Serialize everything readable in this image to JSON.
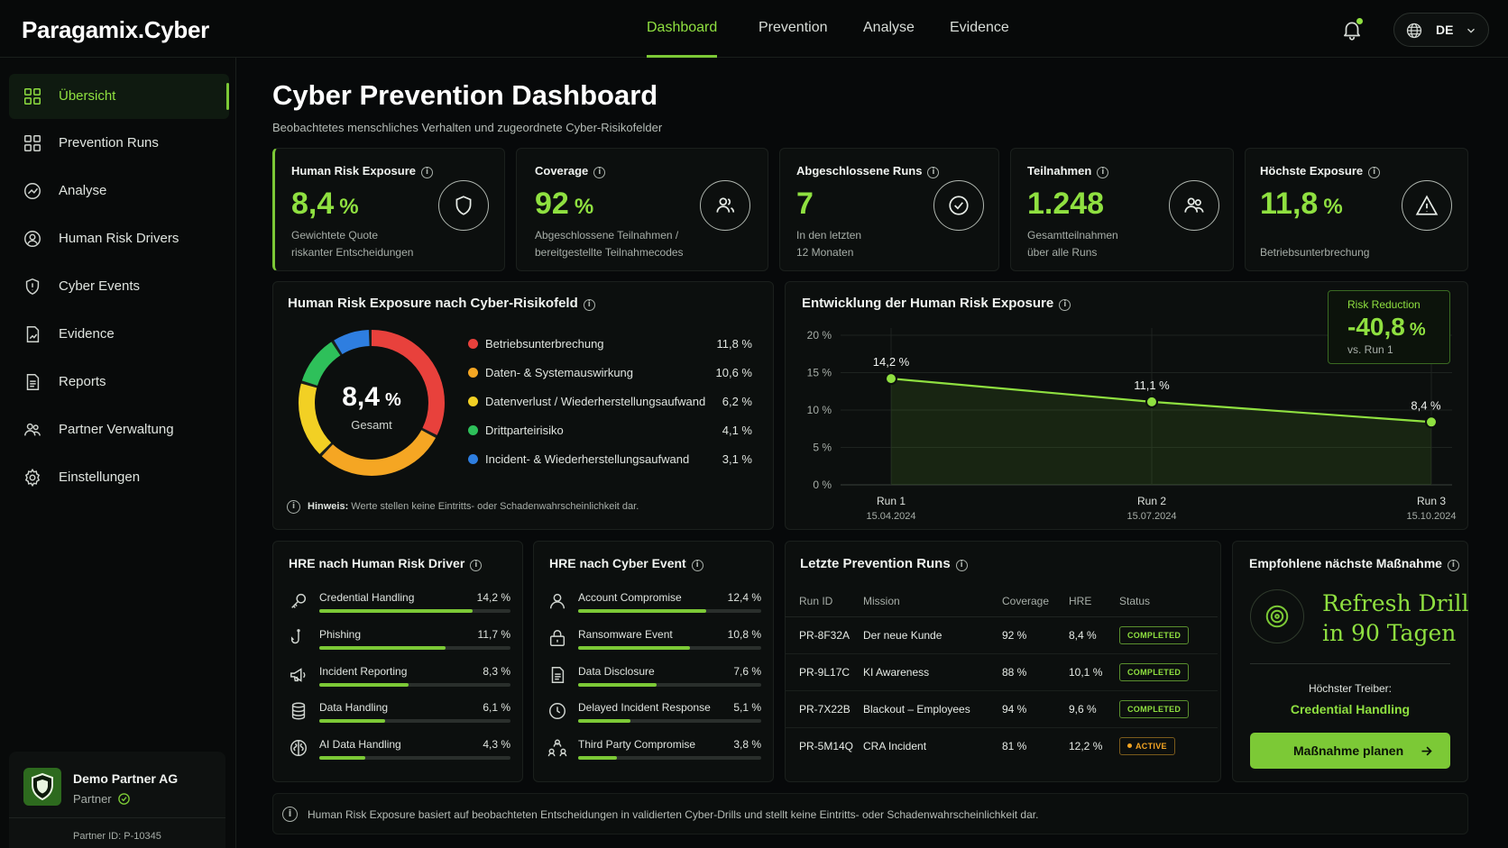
{
  "app": {
    "brand": "Paragamix.Cyber"
  },
  "nav": {
    "tabs": [
      {
        "label": "Dashboard"
      },
      {
        "label": "Prevention"
      },
      {
        "label": "Analyse"
      },
      {
        "label": "Evidence"
      }
    ],
    "language": "DE"
  },
  "sidebar": {
    "items": [
      {
        "label": "Übersicht",
        "icon": "grid-icon"
      },
      {
        "label": "Prevention Runs",
        "icon": "grid-icon"
      },
      {
        "label": "Analyse",
        "icon": "chart-circle-icon"
      },
      {
        "label": "Human Risk Drivers",
        "icon": "user-circle-icon"
      },
      {
        "label": "Cyber Events",
        "icon": "shield-alert-icon"
      },
      {
        "label": "Evidence",
        "icon": "document-chart-icon"
      },
      {
        "label": "Reports",
        "icon": "document-icon"
      },
      {
        "label": "Partner Verwaltung",
        "icon": "users-icon"
      },
      {
        "label": "Einstellungen",
        "icon": "gear-icon"
      }
    ],
    "partner": {
      "name": "Demo Partner AG",
      "role": "Partner",
      "id": "Partner ID: P-10345"
    }
  },
  "page": {
    "title": "Cyber Prevention Dashboard",
    "subtitle": "Beobachtetes menschliches Verhalten und zugeordnete Cyber-Risikofelder"
  },
  "kpis": [
    {
      "title": "Human Risk Exposure",
      "value": "8,4",
      "unit": "%",
      "sub1": "Gewichtete Quote",
      "sub2": "riskanter Entscheidungen",
      "icon": "shield-icon"
    },
    {
      "title": "Coverage",
      "value": "92",
      "unit": "%",
      "sub1": "Abgeschlossene Teilnahmen /",
      "sub2": "bereitgestellte Teilnahmecodes",
      "icon": "users-icon"
    },
    {
      "title": "Abgeschlossene Runs",
      "value": "7",
      "unit": "",
      "sub1": "In den letzten",
      "sub2": "12 Monaten",
      "icon": "check-circle-icon"
    },
    {
      "title": "Teilnahmen",
      "value": "1.248",
      "unit": "",
      "sub1": "Gesamtteilnahmen",
      "sub2": "über alle Runs",
      "icon": "users-icon"
    },
    {
      "title": "Höchste Exposure",
      "value": "11,8",
      "unit": "%",
      "sub1": "",
      "sub2": "Betriebsunterbrechung",
      "icon": "warning-icon"
    }
  ],
  "donut": {
    "title": "Human Risk Exposure nach Cyber-Risikofeld",
    "center_value": "8,4",
    "center_unit": "%",
    "center_label": "Gesamt",
    "note_bold": "Hinweis:",
    "note_text": "Werte stellen keine Eintritts- oder Schadenwahrscheinlichkeit dar.",
    "segments": [
      {
        "label": "Betriebsunterbrechung",
        "value": "11,8 %",
        "num": 11.8,
        "color": "#e8413c"
      },
      {
        "label": "Daten- & Systemauswirkung",
        "value": "10,6 %",
        "num": 10.6,
        "color": "#f5a623"
      },
      {
        "label": "Datenverlust / Wiederherstellungsaufwand",
        "value": "6,2 %",
        "num": 6.2,
        "color": "#f2d024"
      },
      {
        "label": "Drittparteirisiko",
        "value": "4,1 %",
        "num": 4.1,
        "color": "#2ec05a"
      },
      {
        "label": "Incident- & Wiederherstellungsaufwand",
        "value": "3,1 %",
        "num": 3.1,
        "color": "#2e7ee0"
      }
    ]
  },
  "chart_data": {
    "type": "area",
    "title": "Entwicklung der Human Risk Exposure",
    "x": [
      "Run 1",
      "Run 2",
      "Run 3"
    ],
    "x_dates": [
      "15.04.2024",
      "15.07.2024",
      "15.10.2024"
    ],
    "values": [
      14.2,
      11.1,
      8.4
    ],
    "value_labels": [
      "14,2 %",
      "11,1 %",
      "8,4 %"
    ],
    "yticks": [
      "20 %",
      "15 %",
      "10 %",
      "5 %",
      "0 %"
    ],
    "ylim": [
      0,
      20
    ],
    "grid": true,
    "color": "#8fe040"
  },
  "risk_reduction": {
    "label": "Risk Reduction",
    "value": "-40,8",
    "unit": "%",
    "sub": "vs. Run 1"
  },
  "drivers": {
    "title": "HRE nach Human Risk Driver",
    "items": [
      {
        "label": "Credential Handling",
        "value": "14,2 %",
        "num": 14.2,
        "icon": "key-icon"
      },
      {
        "label": "Phishing",
        "value": "11,7 %",
        "num": 11.7,
        "icon": "hook-icon"
      },
      {
        "label": "Incident Reporting",
        "value": "8,3 %",
        "num": 8.3,
        "icon": "megaphone-icon"
      },
      {
        "label": "Data Handling",
        "value": "6,1 %",
        "num": 6.1,
        "icon": "database-icon"
      },
      {
        "label": "AI Data Handling",
        "value": "4,3 %",
        "num": 4.3,
        "icon": "ai-brain-icon"
      }
    ]
  },
  "events": {
    "title": "HRE nach Cyber Event",
    "items": [
      {
        "label": "Account Compromise",
        "value": "12,4 %",
        "num": 12.4,
        "icon": "user-icon"
      },
      {
        "label": "Ransomware Event",
        "value": "10,8 %",
        "num": 10.8,
        "icon": "lock-icon"
      },
      {
        "label": "Data Disclosure",
        "value": "7,6 %",
        "num": 7.6,
        "icon": "document-icon"
      },
      {
        "label": "Delayed Incident Response",
        "value": "5,1 %",
        "num": 5.1,
        "icon": "clock-icon"
      },
      {
        "label": "Third Party Compromise",
        "value": "3,8 %",
        "num": 3.8,
        "icon": "network-users-icon"
      }
    ]
  },
  "runs": {
    "title": "Letzte Prevention Runs",
    "headers": [
      "Run ID",
      "Mission",
      "Coverage",
      "HRE",
      "Status"
    ],
    "rows": [
      {
        "id": "PR-8F32A",
        "mission": "Der neue Kunde",
        "coverage": "92 %",
        "hre": "8,4 %",
        "status": "COMPLETED"
      },
      {
        "id": "PR-9L17C",
        "mission": "KI Awareness",
        "coverage": "88 %",
        "hre": "10,1 %",
        "status": "COMPLETED"
      },
      {
        "id": "PR-7X22B",
        "mission": "Blackout – Employees",
        "coverage": "94 %",
        "hre": "9,6 %",
        "status": "COMPLETED"
      },
      {
        "id": "PR-5M14Q",
        "mission": "CRA Incident",
        "coverage": "81 %",
        "hre": "12,2 %",
        "status": "ACTIVE"
      }
    ]
  },
  "recommendation": {
    "title": "Empfohlene nächste Maßnahme",
    "line1": "Refresh Drill",
    "line2": "in 90 Tagen",
    "driver_label": "Höchster Treiber:",
    "driver_value": "Credential Handling",
    "button": "Maßnahme planen"
  },
  "footer": {
    "note": "Human Risk Exposure basiert auf beobachteten Entscheidungen in validierten Cyber-Drills und stellt keine Eintritts- oder Schadenwahrscheinlichkeit dar."
  }
}
